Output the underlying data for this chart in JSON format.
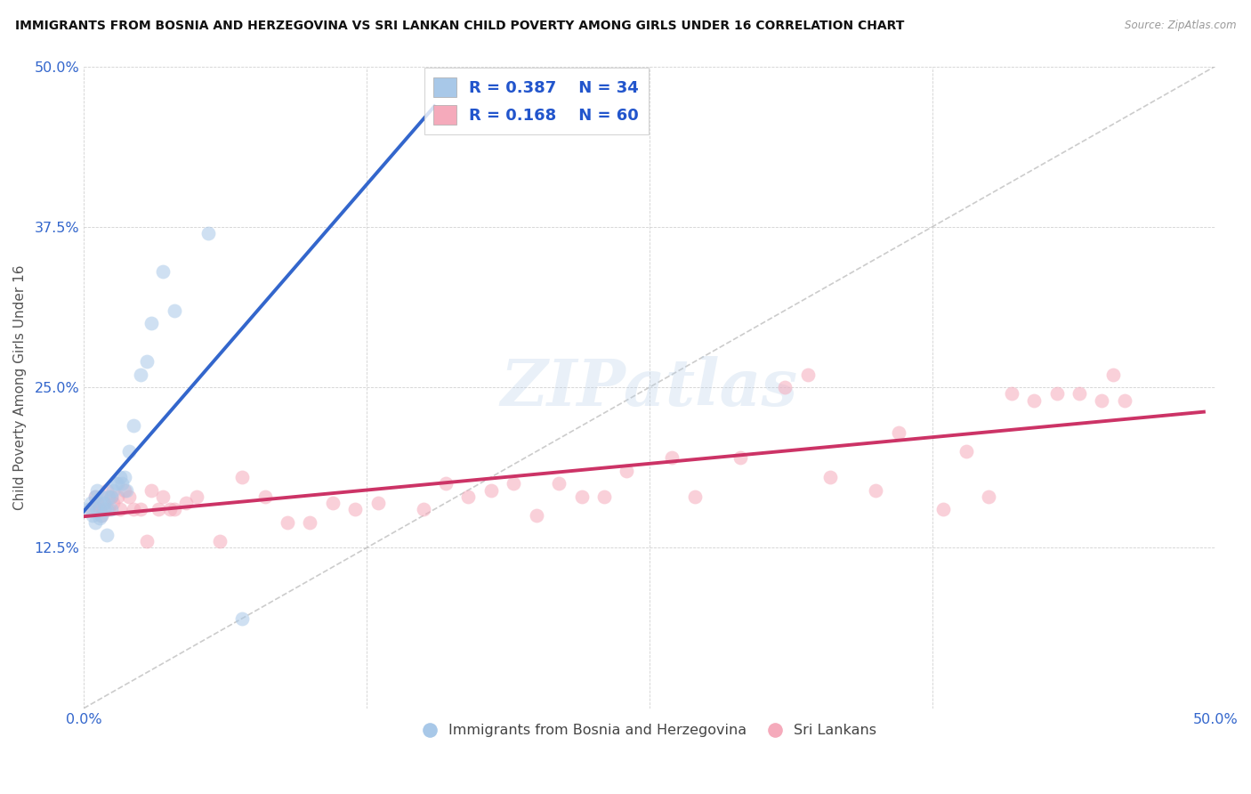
{
  "title": "IMMIGRANTS FROM BOSNIA AND HERZEGOVINA VS SRI LANKAN CHILD POVERTY AMONG GIRLS UNDER 16 CORRELATION CHART",
  "source": "Source: ZipAtlas.com",
  "ylabel": "Child Poverty Among Girls Under 16",
  "xlim": [
    0.0,
    0.5
  ],
  "ylim": [
    0.0,
    0.5
  ],
  "xticks": [
    0.0,
    0.125,
    0.25,
    0.375,
    0.5
  ],
  "xticklabels": [
    "0.0%",
    "",
    "",
    "",
    "50.0%"
  ],
  "yticks": [
    0.0,
    0.125,
    0.25,
    0.375,
    0.5
  ],
  "yticklabels": [
    "",
    "12.5%",
    "25.0%",
    "37.5%",
    "50.0%"
  ],
  "bosnia_R": "0.387",
  "bosnia_N": "34",
  "srilanka_R": "0.168",
  "srilanka_N": "60",
  "bosnia_color": "#a8c8e8",
  "srilanka_color": "#f5aabb",
  "trendline_bosnia_color": "#3366cc",
  "trendline_srilanka_color": "#cc3366",
  "trendline_ref_color": "#bbbbbb",
  "legend_label_bosnia": "Immigrants from Bosnia and Herzegovina",
  "legend_label_srilanka": "Sri Lankans",
  "bosnia_x": [
    0.002,
    0.003,
    0.004,
    0.005,
    0.005,
    0.006,
    0.006,
    0.007,
    0.007,
    0.008,
    0.008,
    0.009,
    0.009,
    0.01,
    0.01,
    0.011,
    0.012,
    0.012,
    0.013,
    0.014,
    0.015,
    0.016,
    0.017,
    0.018,
    0.019,
    0.02,
    0.022,
    0.025,
    0.028,
    0.03,
    0.035,
    0.04,
    0.055,
    0.07
  ],
  "bosnia_y": [
    0.155,
    0.16,
    0.15,
    0.145,
    0.165,
    0.155,
    0.17,
    0.148,
    0.16,
    0.15,
    0.165,
    0.155,
    0.16,
    0.155,
    0.135,
    0.165,
    0.155,
    0.165,
    0.17,
    0.175,
    0.175,
    0.18,
    0.175,
    0.18,
    0.17,
    0.2,
    0.22,
    0.26,
    0.27,
    0.3,
    0.34,
    0.31,
    0.37,
    0.07
  ],
  "srilanka_x": [
    0.003,
    0.005,
    0.006,
    0.007,
    0.008,
    0.009,
    0.01,
    0.011,
    0.012,
    0.013,
    0.015,
    0.016,
    0.018,
    0.02,
    0.022,
    0.025,
    0.028,
    0.03,
    0.033,
    0.035,
    0.038,
    0.04,
    0.045,
    0.05,
    0.06,
    0.07,
    0.08,
    0.09,
    0.1,
    0.11,
    0.12,
    0.13,
    0.15,
    0.16,
    0.17,
    0.18,
    0.19,
    0.2,
    0.21,
    0.22,
    0.23,
    0.24,
    0.26,
    0.27,
    0.29,
    0.31,
    0.32,
    0.33,
    0.35,
    0.36,
    0.38,
    0.39,
    0.4,
    0.41,
    0.42,
    0.43,
    0.44,
    0.45,
    0.455,
    0.46
  ],
  "srilanka_y": [
    0.155,
    0.165,
    0.16,
    0.155,
    0.15,
    0.16,
    0.17,
    0.155,
    0.165,
    0.16,
    0.165,
    0.155,
    0.17,
    0.165,
    0.155,
    0.155,
    0.13,
    0.17,
    0.155,
    0.165,
    0.155,
    0.155,
    0.16,
    0.165,
    0.13,
    0.18,
    0.165,
    0.145,
    0.145,
    0.16,
    0.155,
    0.16,
    0.155,
    0.175,
    0.165,
    0.17,
    0.175,
    0.15,
    0.175,
    0.165,
    0.165,
    0.185,
    0.195,
    0.165,
    0.195,
    0.25,
    0.26,
    0.18,
    0.17,
    0.215,
    0.155,
    0.2,
    0.165,
    0.245,
    0.24,
    0.245,
    0.245,
    0.24,
    0.26,
    0.24
  ],
  "watermark_text": "ZIPatlas",
  "dot_size": 130,
  "dot_alpha": 0.55,
  "bosnia_trend_x_end": 0.155,
  "srilanka_trend_x_end": 0.495
}
